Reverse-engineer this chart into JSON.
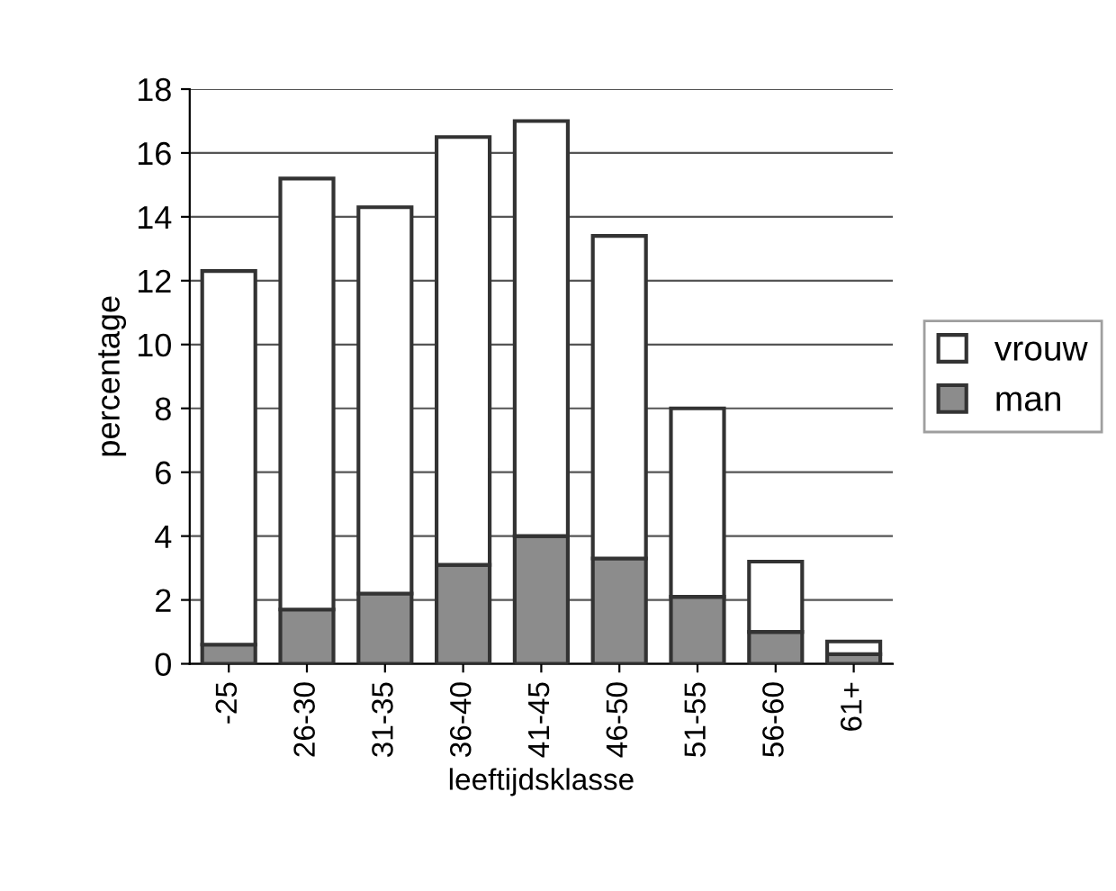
{
  "chart_data": {
    "type": "bar",
    "stacked": true,
    "xlabel": "leeftijdsklasse",
    "ylabel": "percentage",
    "categories": [
      "-25",
      "26-30",
      "31-35",
      "36-40",
      "41-45",
      "46-50",
      "51-55",
      "56-60",
      "61+"
    ],
    "series": [
      {
        "name": "man",
        "color": "#8c8c8c",
        "values": [
          0.6,
          1.7,
          2.2,
          3.1,
          4.0,
          3.3,
          2.1,
          1.0,
          0.3
        ]
      },
      {
        "name": "vrouw",
        "color": "#ffffff",
        "values": [
          11.7,
          13.5,
          12.1,
          13.4,
          13.0,
          10.1,
          5.9,
          2.2,
          0.4
        ]
      }
    ],
    "ylim": [
      0,
      18
    ],
    "yticks": [
      0,
      2,
      4,
      6,
      8,
      10,
      12,
      14,
      16,
      18
    ],
    "grid": "y",
    "legend": "right"
  }
}
